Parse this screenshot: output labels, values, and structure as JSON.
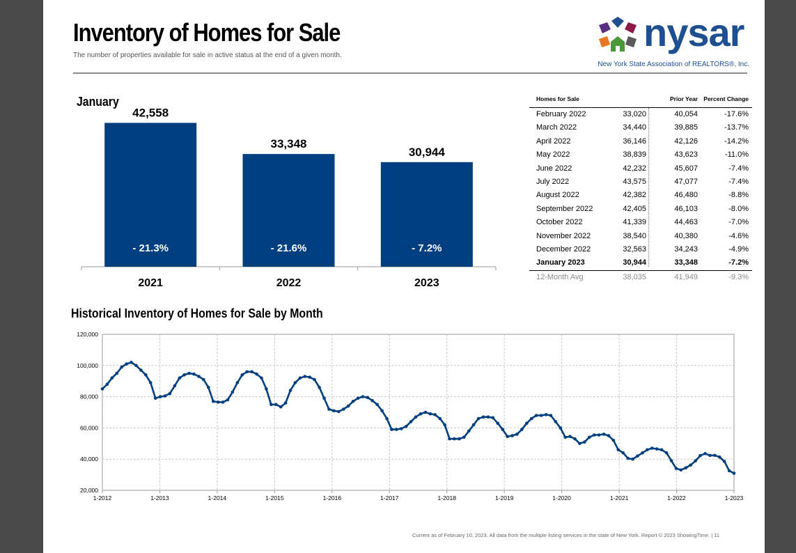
{
  "header": {
    "title": "Inventory of Homes for Sale",
    "subtitle": "The number of properties available for sale in active status at the end of a given month."
  },
  "logo": {
    "wordmark": "nysar",
    "tagline": "New York State Association of REALTORS®, Inc."
  },
  "chart_data": [
    {
      "type": "bar",
      "title": "January",
      "categories": [
        "2021",
        "2022",
        "2023"
      ],
      "values": [
        42558,
        33348,
        30944
      ],
      "value_labels": [
        "42,558",
        "33,348",
        "30,944"
      ],
      "change_labels": [
        "- 21.3%",
        "- 21.6%",
        "- 7.2%"
      ],
      "ylim": [
        0,
        48000
      ],
      "color": "#003f7f"
    },
    {
      "type": "line",
      "title": "Historical Inventory of Homes for Sale by Month",
      "x_ticks": [
        "1-2012",
        "1-2013",
        "1-2014",
        "1-2015",
        "1-2016",
        "1-2017",
        "1-2018",
        "1-2019",
        "1-2020",
        "1-2021",
        "1-2022",
        "1-2023"
      ],
      "y_ticks": [
        "120,000",
        "100,000",
        "80,000",
        "60,000",
        "40,000",
        "20,000"
      ],
      "ylim": [
        20000,
        120000
      ],
      "grid": true,
      "color": "#003f7f",
      "series": [
        {
          "values": [
            85000,
            88000,
            92000,
            95000,
            99000,
            101000,
            102000,
            100000,
            97000,
            94000,
            89000,
            79000,
            80000,
            80500,
            82000,
            87000,
            92000,
            94000,
            95000,
            94500,
            93000,
            91000,
            86000,
            77000,
            76500,
            76500,
            78000,
            83000,
            89000,
            94000,
            96000,
            96000,
            94500,
            92000,
            85000,
            75000,
            75000,
            73500,
            76000,
            84000,
            89000,
            92000,
            93000,
            92500,
            91000,
            86000,
            79000,
            72000,
            71000,
            70500,
            72000,
            74000,
            77000,
            79000,
            80000,
            79500,
            77500,
            75000,
            71000,
            66000,
            59000,
            59000,
            59500,
            61000,
            64000,
            67000,
            69000,
            70000,
            69000,
            68500,
            66000,
            62000,
            53000,
            53000,
            53000,
            54000,
            58000,
            62000,
            66000,
            67000,
            67000,
            66500,
            63000,
            59000,
            54500,
            55000,
            56000,
            59000,
            63000,
            66000,
            68000,
            68000,
            68500,
            68000,
            64000,
            60000,
            54000,
            54500,
            53000,
            50000,
            51000,
            54000,
            55500,
            55500,
            56000,
            55000,
            52000,
            46000,
            44000,
            40500,
            40000,
            42000,
            44000,
            46000,
            47000,
            46500,
            46000,
            44000,
            39000,
            34000,
            33020,
            34440,
            36146,
            38839,
            42232,
            43575,
            42382,
            42405,
            41339,
            38540,
            32563,
            30944
          ]
        }
      ]
    }
  ],
  "table": {
    "headers": [
      "Homes for Sale",
      "",
      "Prior Year",
      "Percent Change"
    ],
    "rows": [
      [
        "February 2022",
        "33,020",
        "40,054",
        "-17.6%"
      ],
      [
        "March 2022",
        "34,440",
        "39,885",
        "-13.7%"
      ],
      [
        "April 2022",
        "36,146",
        "42,126",
        "-14.2%"
      ],
      [
        "May 2022",
        "38,839",
        "43,623",
        "-11.0%"
      ],
      [
        "June 2022",
        "42,232",
        "45,607",
        "-7.4%"
      ],
      [
        "July 2022",
        "43,575",
        "47,077",
        "-7.4%"
      ],
      [
        "August 2022",
        "42,382",
        "46,480",
        "-8.8%"
      ],
      [
        "September 2022",
        "42,405",
        "46,103",
        "-8.0%"
      ],
      [
        "October 2022",
        "41,339",
        "44,463",
        "-7.0%"
      ],
      [
        "November 2022",
        "38,540",
        "40,380",
        "-4.6%"
      ],
      [
        "December 2022",
        "32,563",
        "34,243",
        "-4.9%"
      ],
      [
        "January 2023",
        "30,944",
        "33,348",
        "-7.2%"
      ]
    ],
    "avg_row": [
      "12-Month Avg",
      "38,035",
      "41,949",
      "-9.3%"
    ]
  },
  "footer": "Current as of February 10, 2023. All data from the multiple listing services in the state of New York. Report © 2023 ShowingTime.  |  11"
}
